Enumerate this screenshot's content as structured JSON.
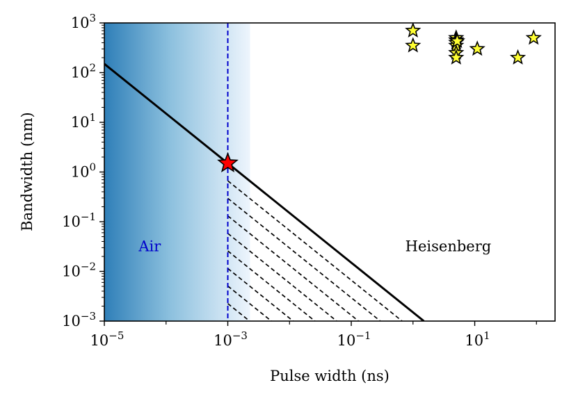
{
  "chart_data": {
    "type": "scatter",
    "xlabel": "Pulse width (ns)",
    "ylabel": "Bandwidth (nm)",
    "x_scale": "log",
    "y_scale": "log",
    "xlim": [
      1e-05,
      200
    ],
    "ylim": [
      0.001,
      1000
    ],
    "grid": false,
    "x_ticks": [
      {
        "value": 1e-05,
        "base": "10",
        "exp": "−5"
      },
      {
        "value": 0.001,
        "base": "10",
        "exp": "−3"
      },
      {
        "value": 0.1,
        "base": "10",
        "exp": "−1"
      },
      {
        "value": 10,
        "base": "10",
        "exp": "1"
      }
    ],
    "y_ticks": [
      {
        "value": 0.001,
        "base": "10",
        "exp": "−3"
      },
      {
        "value": 0.01,
        "base": "10",
        "exp": "−2"
      },
      {
        "value": 0.1,
        "base": "10",
        "exp": "−1"
      },
      {
        "value": 1,
        "base": "10",
        "exp": "0"
      },
      {
        "value": 10,
        "base": "10",
        "exp": "1"
      },
      {
        "value": 100,
        "base": "10",
        "exp": "2"
      },
      {
        "value": 1000,
        "base": "10",
        "exp": "3"
      }
    ],
    "heisenberg_line": {
      "label": "Heisenberg",
      "label_pos": [
        0.75,
        0.032
      ],
      "x": [
        1e-05,
        1.5
      ],
      "y": [
        150,
        0.001
      ],
      "color": "#000000"
    },
    "air_region": {
      "label": "Air",
      "label_pos": [
        3.6e-05,
        0.032
      ],
      "x_range": [
        1e-05,
        0.0023
      ],
      "color_start": "#2f7fb8",
      "color_end": "#eef5fd",
      "label_color": "#0000cc"
    },
    "air_limit_line": {
      "x": 0.001,
      "color": "#0000cc",
      "style": "dashed"
    },
    "hatch_region": {
      "x_start": 0.001,
      "y_top": 1.5,
      "color": "#000000",
      "style": "dashed",
      "line_count": 8
    },
    "this_work_point": {
      "x": 0.001,
      "y": 1.5,
      "color": "#ff0000",
      "marker": "star"
    },
    "reference_points": {
      "color": "#ffff33",
      "marker": "star",
      "x": [
        1,
        1,
        5,
        5,
        5,
        5,
        5,
        5,
        5.2,
        11,
        50,
        90
      ],
      "y": [
        700,
        350,
        500,
        450,
        400,
        350,
        250,
        200,
        430,
        300,
        200,
        500
      ]
    }
  }
}
